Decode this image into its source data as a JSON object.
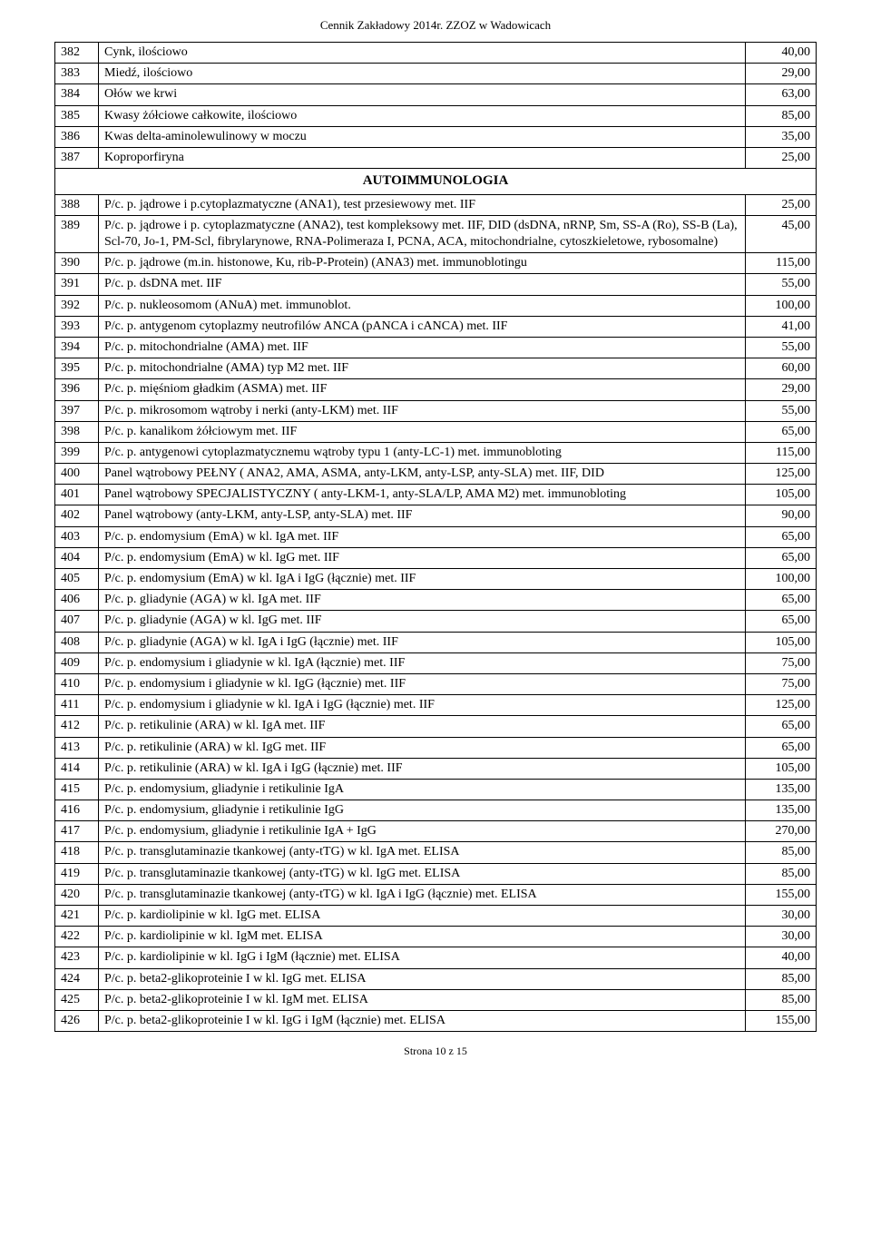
{
  "header": "Cennik Zakładowy 2014r. ZZOZ w Wadowicach",
  "footer": "Strona 10 z 15",
  "section_header": "AUTOIMMUNOLOGIA",
  "rows_top": [
    {
      "n": "382",
      "d": "Cynk, ilościowo",
      "p": "40,00"
    },
    {
      "n": "383",
      "d": "Miedź, ilościowo",
      "p": "29,00"
    },
    {
      "n": "384",
      "d": "Ołów we krwi",
      "p": "63,00"
    },
    {
      "n": "385",
      "d": "Kwasy żółciowe całkowite, ilościowo",
      "p": "85,00"
    },
    {
      "n": "386",
      "d": "Kwas delta-aminolewulinowy w moczu",
      "p": "35,00"
    },
    {
      "n": "387",
      "d": "Koproporfiryna",
      "p": "25,00"
    }
  ],
  "rows_bottom": [
    {
      "n": "388",
      "d": "P/c. p. jądrowe i p.cytoplazmatyczne (ANA1), test przesiewowy met. IIF",
      "p": "25,00"
    },
    {
      "n": "389",
      "d": "P/c. p. jądrowe i p. cytoplazmatyczne (ANA2), test kompleksowy met. IIF, DID (dsDNA, nRNP, Sm, SS-A (Ro), SS-B (La), Scl-70, Jo-1, PM-Scl, fibrylarynowe, RNA-Polimeraza I, PCNA, ACA, mitochondrialne, cytoszkieletowe, rybosomalne)",
      "p": "45,00"
    },
    {
      "n": "390",
      "d": "P/c. p. jądrowe (m.in. histonowe, Ku, rib-P-Protein) (ANA3) met. immunoblotingu",
      "p": "115,00"
    },
    {
      "n": "391",
      "d": "P/c. p. dsDNA met. IIF",
      "p": "55,00"
    },
    {
      "n": "392",
      "d": "P/c. p. nukleosomom (ANuA) met. immunoblot.",
      "p": "100,00"
    },
    {
      "n": "393",
      "d": "P/c. p. antygenom cytoplazmy neutrofilów ANCA (pANCA i cANCA) met. IIF",
      "p": "41,00"
    },
    {
      "n": "394",
      "d": "P/c. p. mitochondrialne (AMA) met. IIF",
      "p": "55,00"
    },
    {
      "n": "395",
      "d": "P/c. p. mitochondrialne (AMA) typ M2 met. IIF",
      "p": "60,00"
    },
    {
      "n": "396",
      "d": "P/c. p. mięśniom gładkim (ASMA) met. IIF",
      "p": "29,00"
    },
    {
      "n": "397",
      "d": "P/c. p. mikrosomom wątroby i nerki (anty-LKM) met. IIF",
      "p": "55,00"
    },
    {
      "n": "398",
      "d": "P/c. p. kanalikom żółciowym met. IIF",
      "p": "65,00"
    },
    {
      "n": "399",
      "d": "P/c. p. antygenowi cytoplazmatycznemu wątroby typu 1 (anty-LC-1) met. immunobloting",
      "p": "115,00"
    },
    {
      "n": "400",
      "d": "Panel wątrobowy PEŁNY ( ANA2, AMA, ASMA, anty-LKM, anty-LSP, anty-SLA) met. IIF, DID",
      "p": "125,00"
    },
    {
      "n": "401",
      "d": "Panel wątrobowy SPECJALISTYCZNY ( anty-LKM-1, anty-SLA/LP, AMA M2) met. immunobloting",
      "p": "105,00"
    },
    {
      "n": "402",
      "d": "Panel wątrobowy (anty-LKM, anty-LSP, anty-SLA) met. IIF",
      "p": "90,00"
    },
    {
      "n": "403",
      "d": "P/c. p. endomysium (EmA) w kl. IgA met. IIF",
      "p": "65,00"
    },
    {
      "n": "404",
      "d": "P/c. p. endomysium (EmA) w kl. IgG met. IIF",
      "p": "65,00"
    },
    {
      "n": "405",
      "d": "P/c. p. endomysium (EmA) w kl. IgA i IgG (łącznie) met. IIF",
      "p": "100,00"
    },
    {
      "n": "406",
      "d": "P/c. p. gliadynie (AGA) w kl. IgA met. IIF",
      "p": "65,00"
    },
    {
      "n": "407",
      "d": "P/c. p. gliadynie (AGA) w kl. IgG met. IIF",
      "p": "65,00"
    },
    {
      "n": "408",
      "d": "P/c. p. gliadynie (AGA) w kl. IgA i IgG (łącznie) met. IIF",
      "p": "105,00"
    },
    {
      "n": "409",
      "d": "P/c. p. endomysium i gliadynie w kl. IgA (łącznie) met. IIF",
      "p": "75,00"
    },
    {
      "n": "410",
      "d": "P/c. p. endomysium i gliadynie w kl. IgG (łącznie) met. IIF",
      "p": "75,00"
    },
    {
      "n": "411",
      "d": "P/c. p. endomysium i gliadynie w kl. IgA i IgG (łącznie) met. IIF",
      "p": "125,00"
    },
    {
      "n": "412",
      "d": "P/c. p. retikulinie (ARA) w kl. IgA met. IIF",
      "p": "65,00"
    },
    {
      "n": "413",
      "d": "P/c. p. retikulinie (ARA) w kl. IgG met. IIF",
      "p": "65,00"
    },
    {
      "n": "414",
      "d": "P/c. p. retikulinie (ARA) w kl. IgA i IgG (łącznie) met. IIF",
      "p": "105,00"
    },
    {
      "n": "415",
      "d": "P/c. p. endomysium, gliadynie i retikulinie IgA",
      "p": "135,00"
    },
    {
      "n": "416",
      "d": "P/c. p. endomysium, gliadynie i retikulinie IgG",
      "p": "135,00"
    },
    {
      "n": "417",
      "d": "P/c. p. endomysium, gliadynie i retikulinie IgA + IgG",
      "p": "270,00"
    },
    {
      "n": "418",
      "d": "P/c. p. transglutaminazie tkankowej (anty-tTG) w kl. IgA met. ELISA",
      "p": "85,00"
    },
    {
      "n": "419",
      "d": "P/c. p. transglutaminazie tkankowej (anty-tTG) w kl. IgG met. ELISA",
      "p": "85,00"
    },
    {
      "n": "420",
      "d": "P/c. p. transglutaminazie tkankowej (anty-tTG) w kl. IgA i IgG (łącznie) met. ELISA",
      "p": "155,00"
    },
    {
      "n": "421",
      "d": "P/c. p. kardiolipinie w kl. IgG met. ELISA",
      "p": "30,00"
    },
    {
      "n": "422",
      "d": "P/c. p. kardiolipinie w kl. IgM met. ELISA",
      "p": "30,00"
    },
    {
      "n": "423",
      "d": "P/c. p. kardiolipinie w kl. IgG i IgM (łącznie) met. ELISA",
      "p": "40,00"
    },
    {
      "n": "424",
      "d": "P/c. p. beta2-glikoproteinie I w kl. IgG met. ELISA",
      "p": "85,00"
    },
    {
      "n": "425",
      "d": "P/c. p. beta2-glikoproteinie I w kl. IgM met. ELISA",
      "p": "85,00"
    },
    {
      "n": "426",
      "d": "P/c. p. beta2-glikoproteinie I w kl. IgG i IgM (łącznie) met. ELISA",
      "p": "155,00"
    }
  ]
}
